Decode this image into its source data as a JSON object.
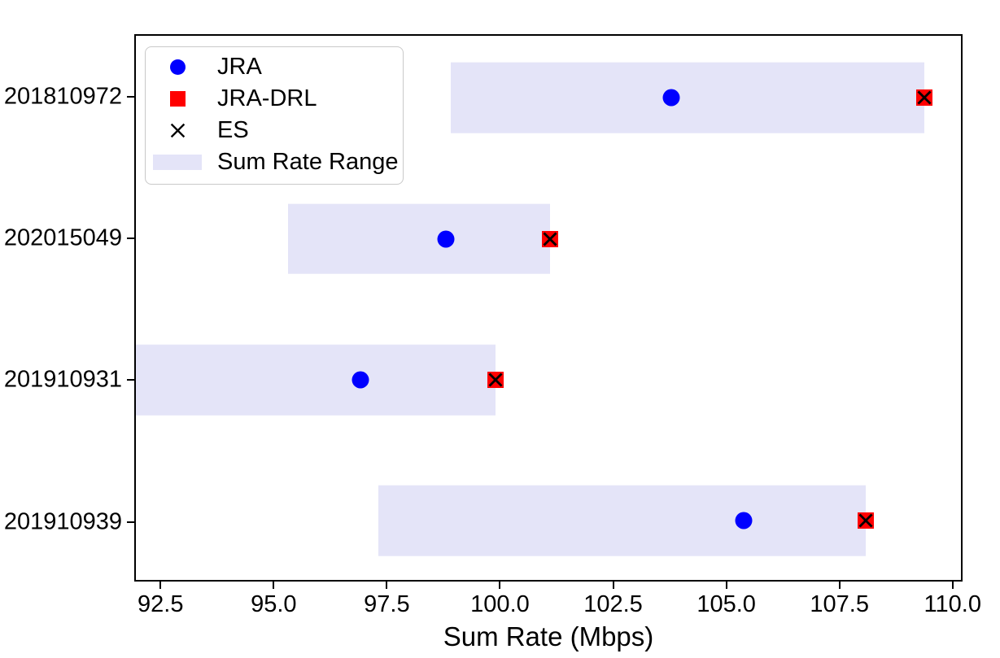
{
  "chart_data": {
    "type": "scatter",
    "title": "",
    "xlabel": "Sum Rate (Mbps)",
    "ylabel": "",
    "xlim": [
      91.92,
      110.22
    ],
    "ylim": [
      -0.42,
      3.44
    ],
    "grid": false,
    "xticks": [
      92.5,
      95.0,
      97.5,
      100.0,
      102.5,
      105.0,
      107.5,
      110.0
    ],
    "xtick_labels": [
      "92.5",
      "95.0",
      "97.5",
      "100.0",
      "102.5",
      "105.0",
      "107.5",
      "110.0"
    ],
    "categories": [
      "201810972",
      "202015049",
      "201910931",
      "201910939"
    ],
    "category_positions": [
      3,
      2,
      1,
      0
    ],
    "band_height_data_units": 0.5,
    "series": [
      {
        "name": "JRA",
        "marker": "circle",
        "color": "#0000ff",
        "values": [
          103.8,
          98.8,
          96.9,
          105.4
        ]
      },
      {
        "name": "JRA-DRL",
        "marker": "square",
        "color": "#ff0000",
        "values": [
          109.4,
          101.1,
          99.9,
          108.1
        ]
      },
      {
        "name": "ES",
        "marker": "x",
        "color": "#000000",
        "values": [
          109.4,
          101.1,
          99.9,
          108.1
        ]
      },
      {
        "name": "Sum Rate Range",
        "marker": "band",
        "color": "#e4e4f8",
        "ranges": [
          [
            98.9,
            109.4
          ],
          [
            95.3,
            101.1
          ],
          [
            91.9,
            99.9
          ],
          [
            97.3,
            108.1
          ]
        ]
      }
    ],
    "legend": {
      "position": "upper left",
      "entries": [
        "JRA",
        "JRA-DRL",
        "ES",
        "Sum Rate Range"
      ]
    }
  }
}
